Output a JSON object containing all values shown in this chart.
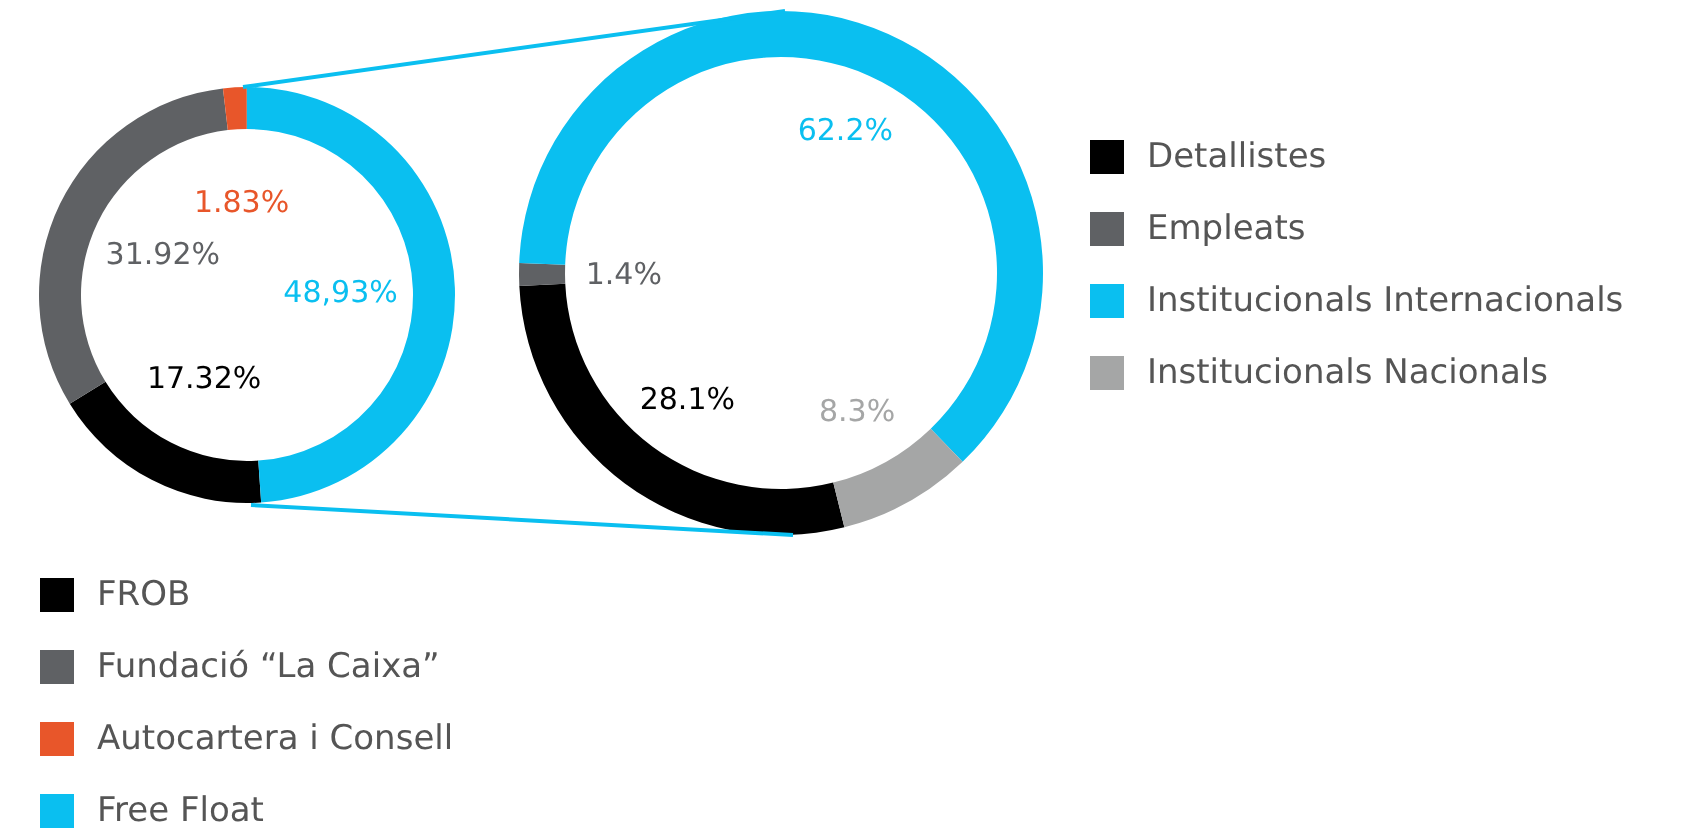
{
  "chart_data": [
    {
      "type": "donut",
      "categories": [
        "FROB",
        "Fundació “La Caixa”",
        "Autocartera i Consell",
        "Free Float"
      ],
      "values": [
        17.32,
        31.92,
        1.83,
        48.93
      ],
      "colors": [
        "#000000",
        "#5f6164",
        "#e8562a",
        "#0abff0"
      ],
      "value_labels": [
        "17.32%",
        "31.92%",
        "1.83%",
        "48,93%"
      ],
      "legend": "bottom"
    },
    {
      "type": "donut",
      "categories": [
        "Detallistes",
        "Empleats",
        "Institucionals Internacionals",
        "Institucionals Nacionals"
      ],
      "values": [
        28.1,
        1.4,
        62.2,
        8.3
      ],
      "colors": [
        "#000000",
        "#5f6164",
        "#0abff0",
        "#a5a6a6"
      ],
      "value_labels": [
        "28.1%",
        "1.4%",
        "62.2%",
        "8.3%"
      ],
      "legend": "right"
    }
  ]
}
